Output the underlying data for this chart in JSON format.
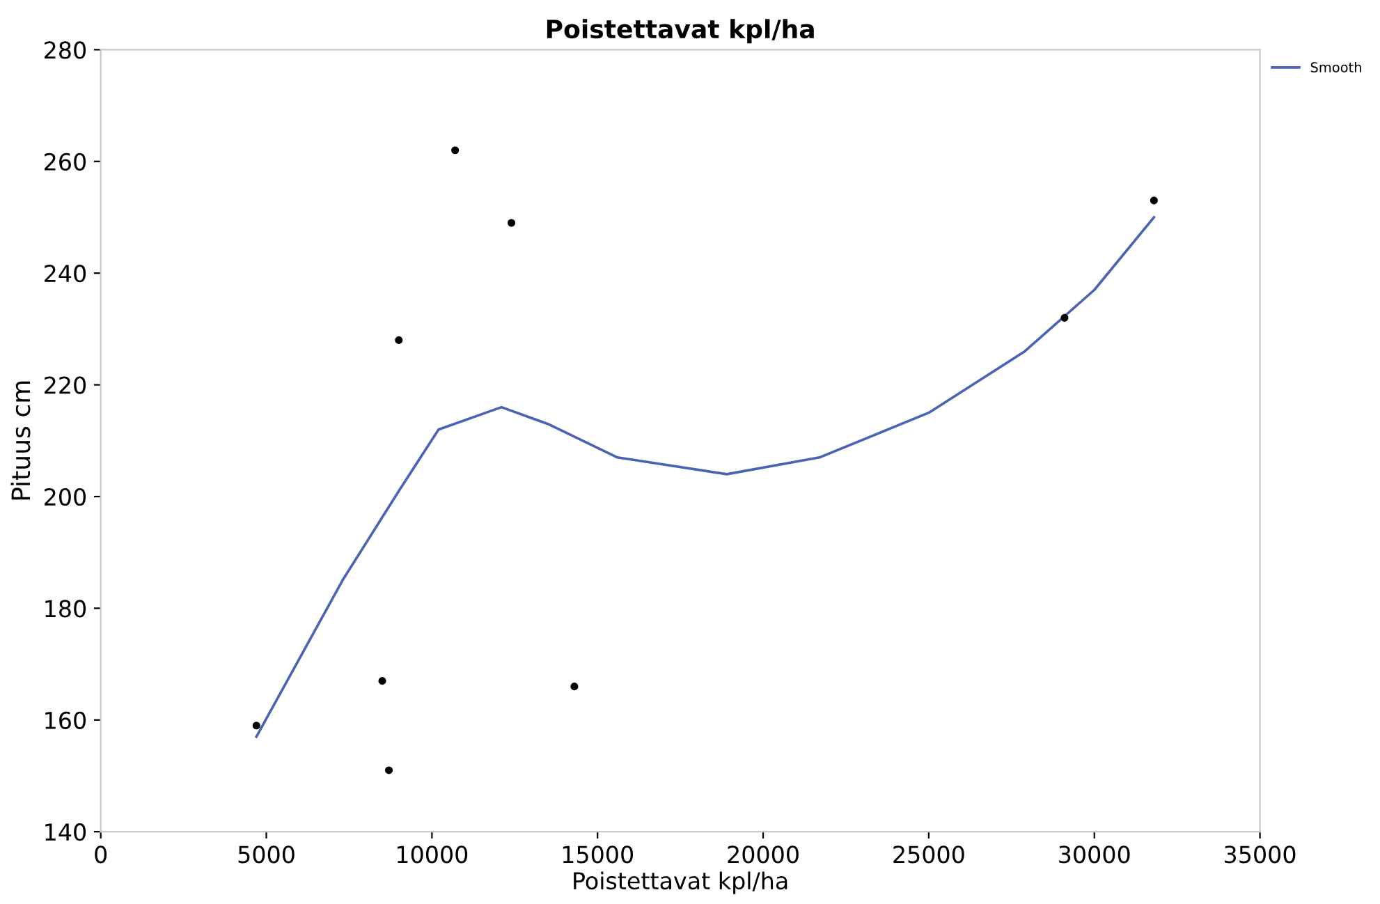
{
  "chart_data": {
    "type": "scatter",
    "title": "Poistettavat kpl/ha",
    "xlabel": "Poistettavat kpl/ha",
    "ylabel": "Pituus cm",
    "xlim": [
      0,
      35000
    ],
    "xticks": [
      0,
      5000,
      10000,
      15000,
      20000,
      25000,
      30000,
      35000
    ],
    "ylim": [
      140,
      280
    ],
    "yticks": [
      140,
      160,
      180,
      200,
      220,
      240,
      260,
      280
    ],
    "grid": false,
    "legend": "top right",
    "series": [
      {
        "color": "#000000",
        "marker": "circle",
        "x": [
          4700,
          10700,
          12400,
          9000,
          8500,
          8700,
          14300,
          29100,
          31800
        ],
        "values": [
          159,
          262,
          249,
          228,
          167,
          151,
          166,
          232,
          253
        ]
      },
      {
        "type": "line",
        "name": "Smooth",
        "color": "#4a63b5",
        "marker": "none",
        "x": [
          4700,
          7300,
          9000,
          10200,
          12100,
          13500,
          15600,
          18900,
          21700,
          25000,
          27900,
          30000,
          31800
        ],
        "values": [
          157,
          185,
          201,
          212,
          216,
          213,
          207,
          204,
          207,
          215,
          226,
          237,
          250
        ]
      }
    ]
  }
}
